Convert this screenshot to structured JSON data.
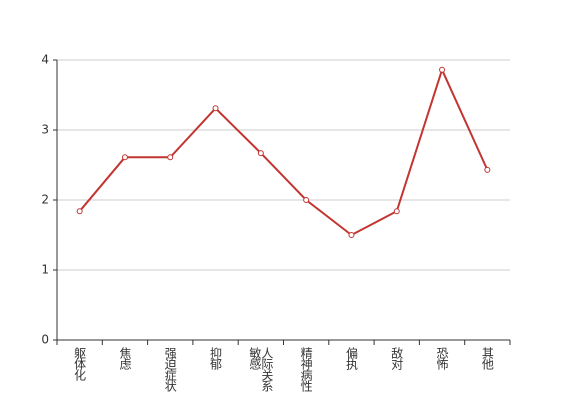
{
  "chart_data": {
    "type": "line",
    "categories": [
      "躯体化",
      "焦虑",
      "强迫症状",
      "抑郁",
      "人际关系敏感",
      "精神病性",
      "偏执",
      "敌对",
      "恐怖",
      "其他"
    ],
    "values": [
      1.84,
      2.61,
      2.61,
      3.31,
      2.67,
      2.0,
      1.5,
      1.84,
      3.86,
      2.43
    ],
    "color": "#c23531",
    "ylim": [
      0,
      4
    ],
    "yticks": [
      0,
      1,
      2,
      3,
      4
    ],
    "grid": true
  }
}
